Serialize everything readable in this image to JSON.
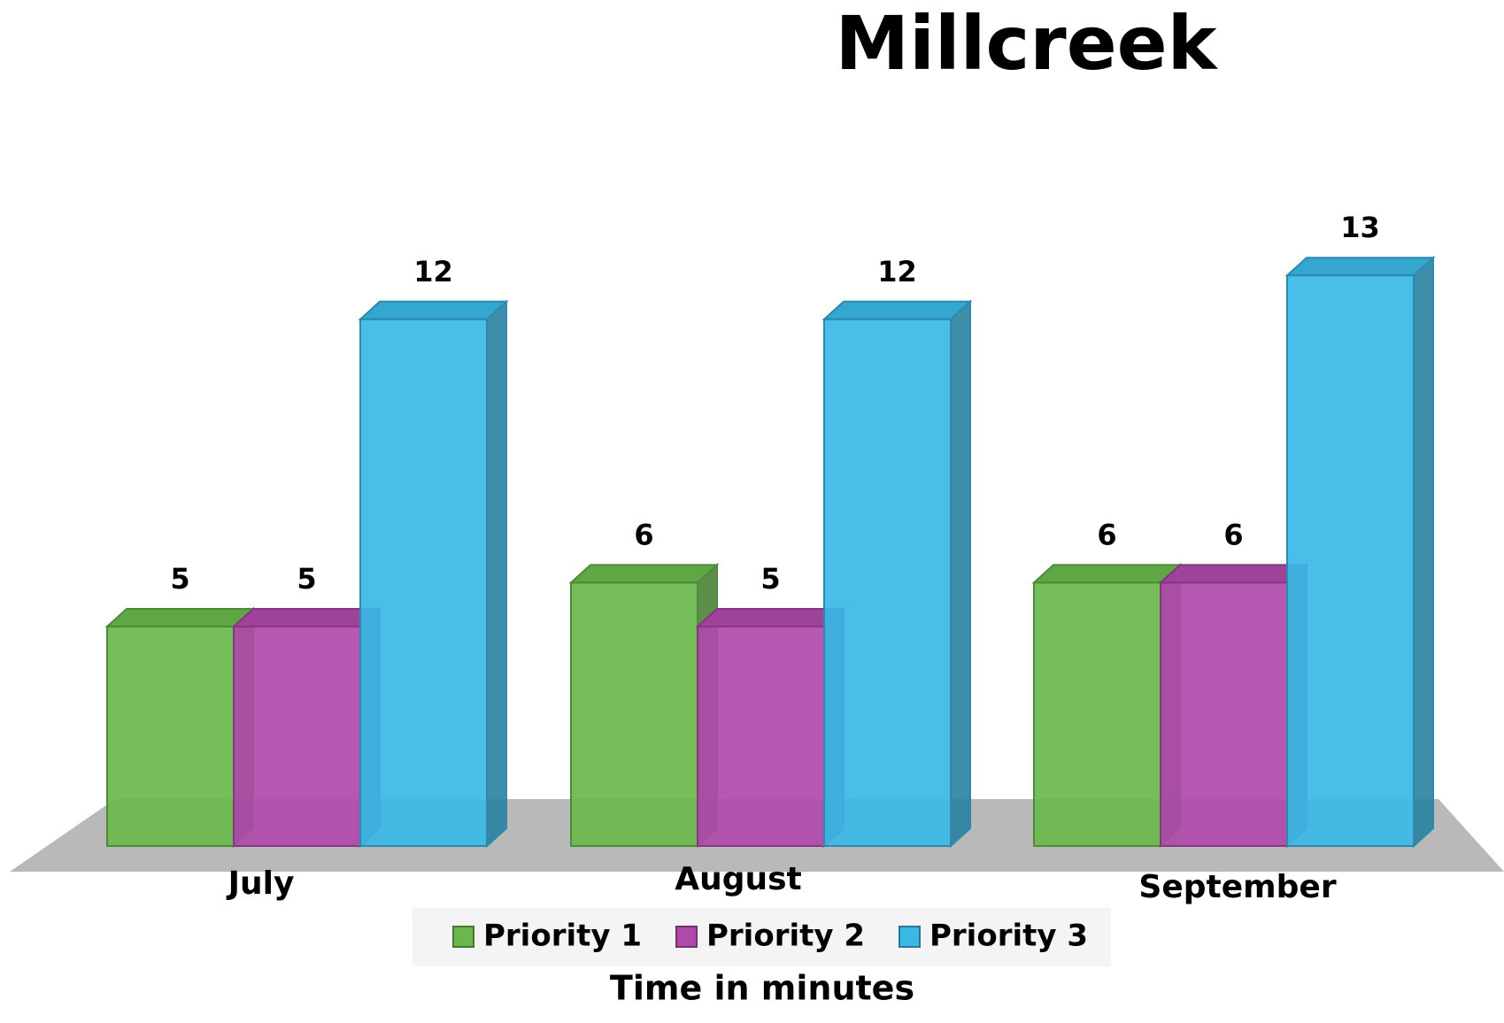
{
  "chart_data": {
    "type": "bar3d",
    "title": "Millcreek",
    "categories": [
      "July",
      "August",
      "September"
    ],
    "series": [
      {
        "name": "Priority 1",
        "color": "#6ab84c",
        "values": [
          5,
          6,
          6
        ]
      },
      {
        "name": "Priority 2",
        "color": "#b04aaa",
        "values": [
          5,
          5,
          6
        ]
      },
      {
        "name": "Priority 3",
        "color": "#3ab8e6",
        "values": [
          12,
          12,
          13
        ]
      }
    ],
    "axis_label": "Time in minutes",
    "legend": "bottom"
  }
}
